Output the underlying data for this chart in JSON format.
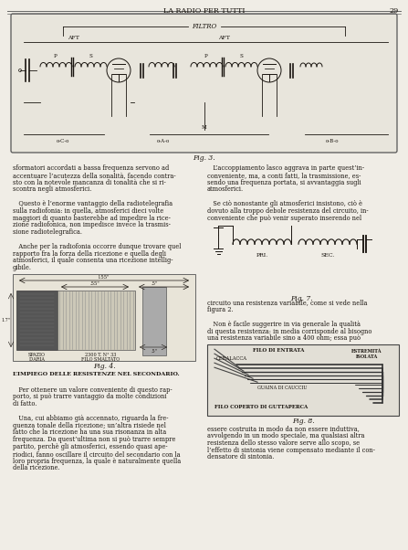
{
  "title": "LA RADIO PER TUTTI",
  "page_number": "29",
  "bg_color": "#f0ede6",
  "text_color": "#1a1510",
  "figsize": [
    4.47,
    6.02
  ],
  "dpi": 100,
  "left_col_text": [
    "sformatori accordati a bassa frequenza servono ad",
    "accentuare l’acutezza della sonalità, facendo contra-",
    "sto con la notevole mancanza di tonalità che si ri-",
    "scontra negli atmosferici.",
    "",
    "   Questo è l’enorme vantaggio della radiotelegrafia",
    "sulla radiofonia: in quella, atmosferici dieci volte",
    "maggiori di quanto basterebbe ad impedire la rice-",
    "zione radiofonica, non impedisce invece la trasmis-",
    "sione radiotelegrafica.",
    "",
    "   Anche per la radiofonia occorre dunque trovare quel",
    "rapporto fra la forza della ricezione e quella degli",
    "atmosferici, il quale consenta una ricezione intellig-",
    "gibile."
  ],
  "right_col_text_top": [
    "   L’accoppiamento lasco aggrava in parte quest’in-",
    "conveniente, ma, a conti fatti, la trasmissione, es-",
    "sendo una frequenza portata, si avvantaggia sugli",
    "atmosferici.",
    "",
    "   Se ciò nonostante gli atmosferici insistono, ciò è",
    "dovuto alla troppo debole resistenza del circuito, in-",
    "conveniente che può venir superato inserendo nel"
  ],
  "right_col_text_mid": [
    "circuito una resistenza variabile, come si vede nella",
    "figura 2.",
    "",
    "   Non è facile suggerire in via generale la qualità",
    "di questa resistenza: in media corrisponde al bisogno",
    "una resistenza variabile sino a 400 ohm; essa può"
  ],
  "left_col_text_bot": [
    "L’IMPIEGO DELLE RESISTENZE NEL SECONDARIO.",
    "",
    "   Per ottenere un valore conveniente di questo rap-",
    "porto, si può trarre vantaggio da molte condizioni",
    "di fatto.",
    "",
    "   Una, cui abbiamo già accennato, riguarda la fre-",
    "quenza tonale della ricezione; un’altra risiede nel",
    "fatto che la ricezione ha una sua risonanza in alta",
    "frequenza. Da quest’ultima non si può trarre sempre",
    "partito, perchè gli atmosferici, essendo quasi ape-",
    "riodici, fanno oscillare il circuito del secondario con la",
    "loro propria frequenza, la quale è naturalmente quella",
    "della ricezione."
  ],
  "right_col_text_bot": [
    "essere costruita in modo da non essere induttiva,",
    "avvolgendo in un modo speciale, ma qualsiasi altra",
    "resistenza dello stesso valore serve allo scopo, se",
    "l’effetto di sintonia viene compensato mediante il con-",
    "densatore di sintonia."
  ],
  "fig3_caption": "Fig. 3.",
  "fig4_caption": "Fig. 4.",
  "fig7_caption": "Fig. 7.",
  "fig8_caption": "Fig. 8.",
  "fig8_labels": {
    "filo_entrata": "FILO DI ENTRATA",
    "ceralacca": "CERALACCA",
    "estremita": "ESTREMITÀ",
    "isolata": "ISOLATA",
    "guaina": "GUAINA DI CAUCCIU",
    "filo_guttaperca": "FILO COPERTO DI GUTTAPERCA"
  }
}
